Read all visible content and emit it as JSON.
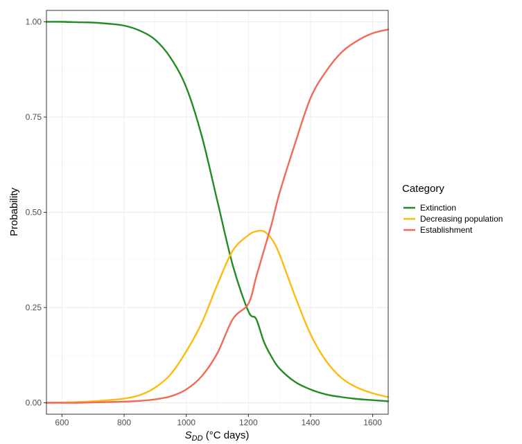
{
  "chart_data": {
    "type": "line",
    "xlabel_main": "S",
    "xlabel_sub": "DD",
    "xlabel_rest": " (°C days)",
    "ylabel": "Probability",
    "xlim": [
      550,
      1650
    ],
    "ylim": [
      -0.03,
      1.03
    ],
    "x_ticks": [
      600,
      800,
      1000,
      1200,
      1400,
      1600
    ],
    "x_tick_labels": [
      "600",
      "800",
      "1000",
      "1200",
      "1400",
      "1600"
    ],
    "y_ticks": [
      0,
      0.25,
      0.5,
      0.75,
      1
    ],
    "y_tick_labels": [
      "0.00",
      "0.25",
      "0.50",
      "0.75",
      "1.00"
    ],
    "grid": true,
    "legend": {
      "title": "Category",
      "placement": "right"
    },
    "x": [
      550,
      600,
      650,
      700,
      750,
      800,
      850,
      900,
      950,
      1000,
      1050,
      1100,
      1150,
      1200,
      1225,
      1250,
      1275,
      1300,
      1350,
      1400,
      1450,
      1500,
      1550,
      1600,
      1650
    ],
    "series": [
      {
        "name": "Extinction",
        "color": "#228b22",
        "values": [
          1.0,
          1.0,
          0.999,
          0.998,
          0.995,
          0.99,
          0.977,
          0.953,
          0.905,
          0.828,
          0.7,
          0.53,
          0.36,
          0.24,
          0.22,
          0.16,
          0.12,
          0.09,
          0.055,
          0.035,
          0.022,
          0.015,
          0.01,
          0.007,
          0.004
        ]
      },
      {
        "name": "Decreasing population",
        "color": "#ffb90f",
        "values": [
          0.0,
          0.001,
          0.002,
          0.004,
          0.007,
          0.011,
          0.02,
          0.04,
          0.075,
          0.135,
          0.21,
          0.31,
          0.4,
          0.44,
          0.45,
          0.45,
          0.43,
          0.39,
          0.28,
          0.18,
          0.11,
          0.065,
          0.04,
          0.025,
          0.015
        ]
      },
      {
        "name": "Establishment",
        "color": "#f16a55",
        "values": [
          0.0,
          0.0,
          0.0,
          0.001,
          0.002,
          0.003,
          0.005,
          0.009,
          0.017,
          0.035,
          0.07,
          0.13,
          0.22,
          0.26,
          0.33,
          0.4,
          0.47,
          0.55,
          0.68,
          0.8,
          0.87,
          0.92,
          0.95,
          0.97,
          0.98
        ]
      }
    ]
  }
}
